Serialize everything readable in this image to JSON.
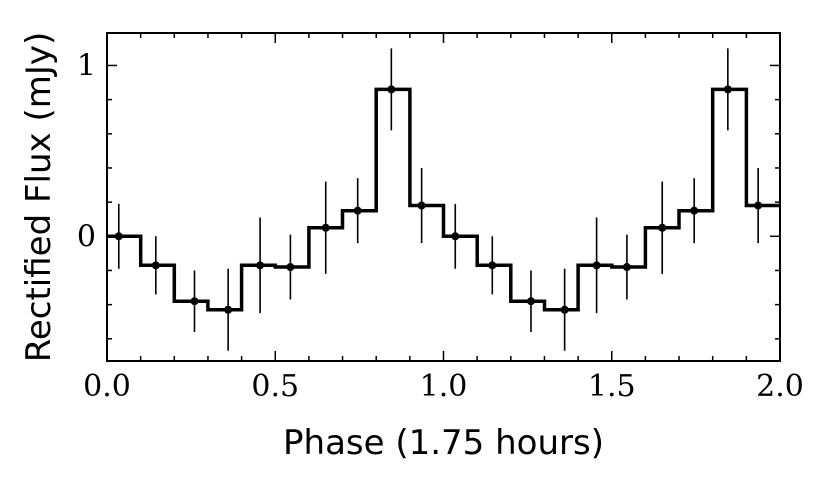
{
  "chart_data": {
    "type": "line",
    "xlabel": "Phase (1.75 hours)",
    "ylabel": "Rectified Flux (mJy)",
    "xlim": [
      0.0,
      2.0
    ],
    "ylim": [
      -0.73,
      1.19
    ],
    "xticks": [
      {
        "value": 0.0,
        "label": "0.0"
      },
      {
        "value": 0.5,
        "label": "0.5"
      },
      {
        "value": 1.0,
        "label": "1.0"
      },
      {
        "value": 1.5,
        "label": "1.5"
      },
      {
        "value": 2.0,
        "label": "2.0"
      }
    ],
    "yticks": [
      {
        "value": 0,
        "label": "0"
      },
      {
        "value": 1,
        "label": "1"
      }
    ],
    "x_minor_step": 0.1,
    "y_minor_step": 0.2,
    "grid": false,
    "series": [
      {
        "style": "step-histogram with error bars",
        "color": "#000000",
        "bin_edges": [
          0.0,
          0.1,
          0.2,
          0.3,
          0.4,
          0.5,
          0.6,
          0.7,
          0.8,
          0.9,
          1.0,
          1.1,
          1.2,
          1.3,
          1.4,
          1.5,
          1.6,
          1.7,
          1.8,
          1.9,
          2.0
        ],
        "x": [
          0.035,
          0.145,
          0.26,
          0.36,
          0.455,
          0.545,
          0.65,
          0.745,
          0.845,
          0.935,
          1.035,
          1.145,
          1.26,
          1.36,
          1.455,
          1.545,
          1.65,
          1.745,
          1.845,
          1.935
        ],
        "y": [
          0.0,
          -0.17,
          -0.38,
          -0.43,
          -0.17,
          -0.18,
          0.05,
          0.15,
          0.86,
          0.18,
          0.0,
          -0.17,
          -0.38,
          -0.43,
          -0.17,
          -0.18,
          0.05,
          0.15,
          0.86,
          0.18
        ],
        "y_err": [
          0.19,
          0.17,
          0.18,
          0.24,
          0.28,
          0.19,
          0.27,
          0.19,
          0.24,
          0.22,
          0.19,
          0.17,
          0.18,
          0.24,
          0.28,
          0.19,
          0.27,
          0.19,
          0.24,
          0.22
        ]
      }
    ]
  }
}
